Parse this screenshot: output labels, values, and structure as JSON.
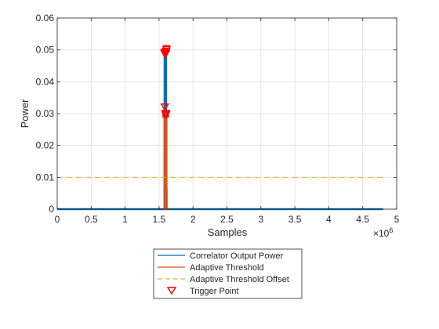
{
  "chart_data": {
    "type": "line",
    "title": "",
    "xlabel": "Samples",
    "ylabel": "Power",
    "x_exponent_label": "×10",
    "x_exponent_value": "6",
    "xlim": [
      0,
      5
    ],
    "ylim": [
      0,
      0.06
    ],
    "x_ticks": [
      "0",
      "0.5",
      "1",
      "1.5",
      "2",
      "2.5",
      "3",
      "3.5",
      "4",
      "4.5",
      "5"
    ],
    "y_ticks": [
      "0",
      "0.01",
      "0.02",
      "0.03",
      "0.04",
      "0.05",
      "0.06"
    ],
    "x_tick_values": [
      0,
      0.5,
      1,
      1.5,
      2,
      2.5,
      3,
      3.5,
      4,
      4.5,
      5
    ],
    "y_tick_values": [
      0,
      0.01,
      0.02,
      0.03,
      0.04,
      0.05,
      0.06
    ],
    "grid": true,
    "legend_position": "bottom-outside",
    "series": [
      {
        "name": "Correlator Output Power",
        "color": "#0072BD",
        "style": "solid",
        "x": [
          0,
          1.58,
          1.581,
          1.581,
          1.5815,
          1.5815,
          1.582,
          1.582,
          1.59,
          1.59,
          1.6,
          1.6,
          1.605,
          1.605,
          1.61,
          1.61,
          1.612,
          1.612,
          4.8
        ],
        "y": [
          0,
          0,
          0.049,
          0,
          0.049,
          0,
          0.049,
          0,
          0.049,
          0,
          0.049,
          0,
          0.05,
          0,
          0.007,
          0,
          0.006,
          0,
          0
        ]
      },
      {
        "name": "Adaptive Threshold",
        "color": "#D95319",
        "style": "solid",
        "x": [
          1.58,
          1.58,
          1.58,
          1.6,
          1.6,
          1.6,
          1.61,
          1.61,
          1.61
        ],
        "y": [
          0,
          0.031,
          0,
          0,
          0.03,
          0,
          0,
          0.03,
          0
        ]
      },
      {
        "name": "Adaptive Threshold Offset",
        "color": "#EDB120",
        "style": "dashed",
        "x": [
          0,
          4.8
        ],
        "y": [
          0.01,
          0.01
        ]
      }
    ],
    "markers": {
      "name": "Trigger Point",
      "color": "#FF0000",
      "shape": "triangle-down",
      "points": [
        {
          "x": 1.585,
          "y": 0.032
        },
        {
          "x": 1.595,
          "y": 0.03
        },
        {
          "x": 1.6,
          "y": 0.0295
        },
        {
          "x": 1.605,
          "y": 0.0298
        },
        {
          "x": 1.58,
          "y": 0.049
        },
        {
          "x": 1.59,
          "y": 0.0485
        },
        {
          "x": 1.595,
          "y": 0.0492
        },
        {
          "x": 1.6,
          "y": 0.0488
        },
        {
          "x": 1.605,
          "y": 0.0495
        },
        {
          "x": 1.61,
          "y": 0.05
        }
      ],
      "squares": [
        {
          "x": 1.61,
          "y": 0.0505
        },
        {
          "x": 1.598,
          "y": 0.0298
        }
      ]
    }
  }
}
